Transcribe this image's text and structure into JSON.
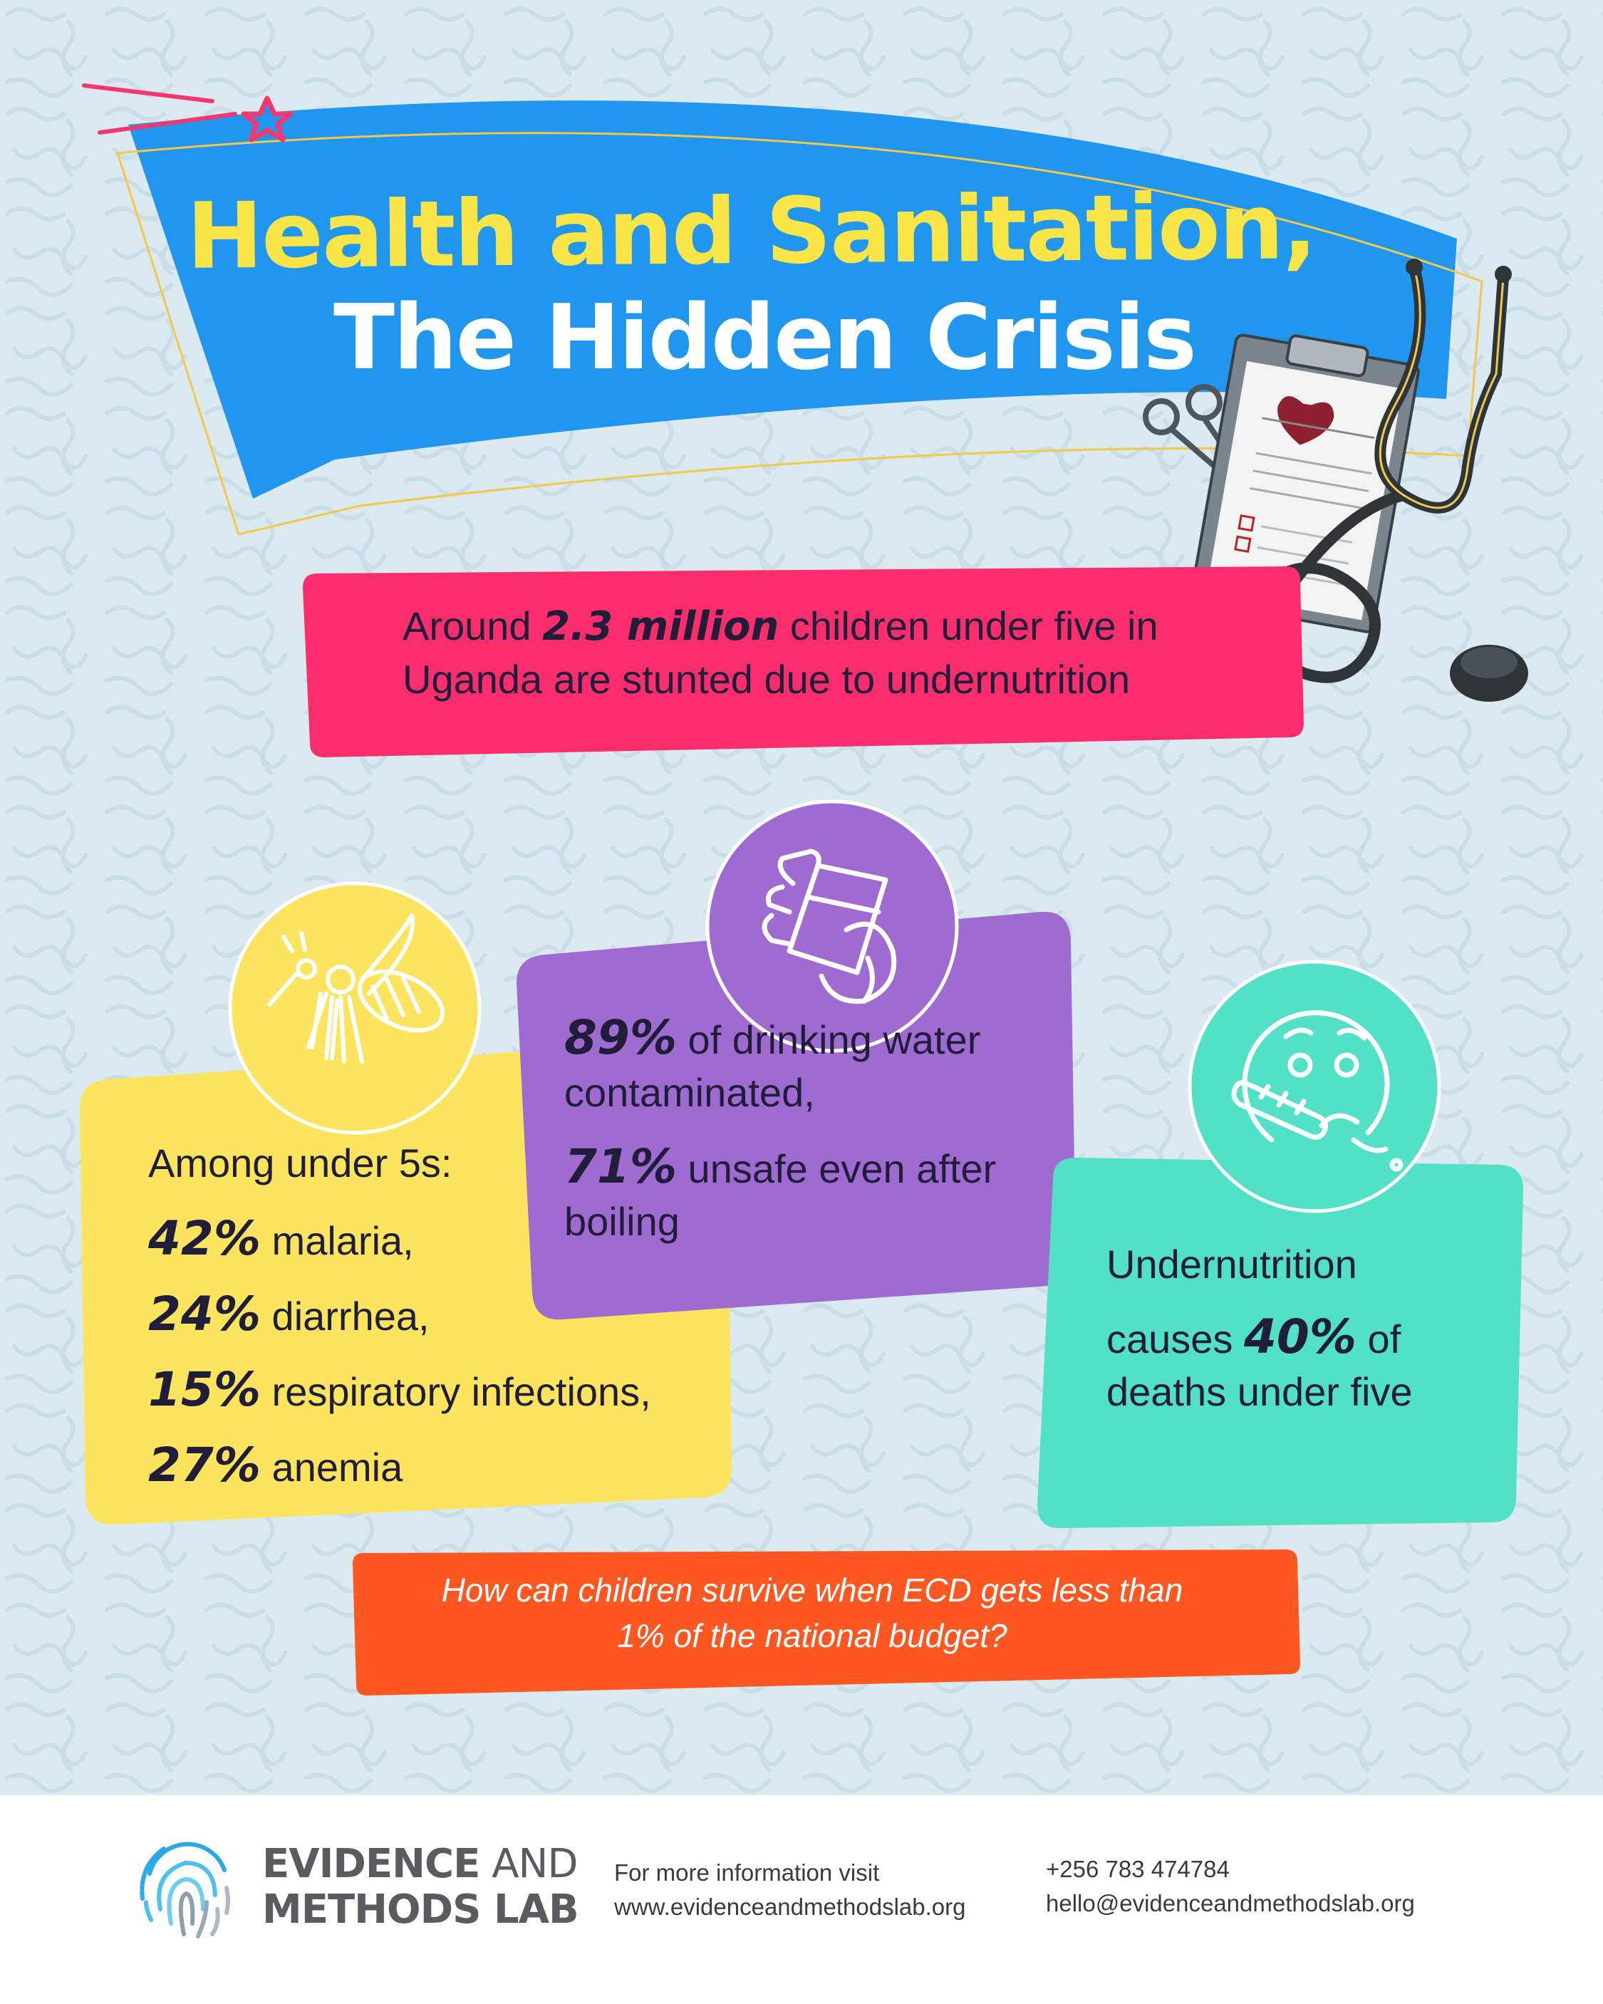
{
  "title": {
    "line1": "Health and Sanitation,",
    "line2": "The Hidden Crisis"
  },
  "stunting": {
    "prefix": "Around ",
    "highlight": "2.3 million",
    "line1_suffix": " children under five in",
    "line2": "Uganda are stunted due to undernutrition"
  },
  "under5": {
    "heading": "Among under 5s:",
    "items": [
      {
        "pct": "42%",
        "label": " malaria,"
      },
      {
        "pct": "24%",
        "label": " diarrhea,"
      },
      {
        "pct": "15%",
        "label": " respiratory infections,"
      },
      {
        "pct": "27%",
        "label": " anemia"
      }
    ]
  },
  "water": {
    "pct1": "89%",
    "text1a": " of drinking water",
    "text1b": "contaminated,",
    "pct2": "71%",
    "text2a": " unsafe even after",
    "text2b": "boiling"
  },
  "undernutrition": {
    "line1": "Undernutrition",
    "prefix": "causes ",
    "pct": "40%",
    "suffix": " of",
    "line3": "deaths under five"
  },
  "question": {
    "line1": "How can children survive when ECD gets less than",
    "line2": "1% of the national budget?"
  },
  "footer": {
    "brand_word1": "EVIDENCE",
    "brand_word2": " AND",
    "brand_line2": "METHODS LAB",
    "info_label": "For more information visit",
    "website": "www.evidenceandmethodslab.org",
    "phone": "+256 783 474784",
    "email": "hello@evidenceandmethodslab.org"
  },
  "colors": {
    "background": "#dbe9f0",
    "banner_blue": "#2196ee",
    "title_yellow": "#f9e547",
    "pink": "#fb2d6c",
    "yellow": "#fde45e",
    "purple": "#a06bd1",
    "teal": "#52e0c6",
    "orange": "#fe5722",
    "text_dark": "#1f1d3a"
  },
  "icons": [
    "mosquito-icon",
    "water-glass-icon",
    "sick-face-thermometer-icon",
    "stethoscope-clipboard-icon",
    "fingerprint-logo-icon",
    "star-icon"
  ]
}
